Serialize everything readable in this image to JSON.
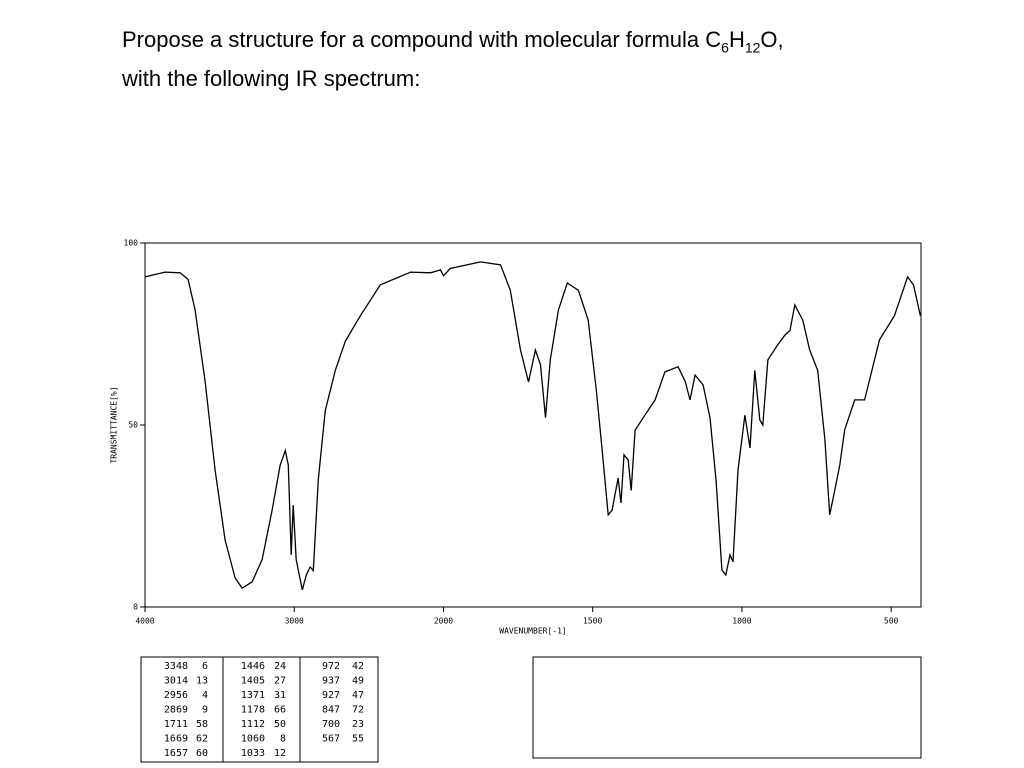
{
  "question": [
    "Propose a structure for a compound with molecular formula C",
    "6",
    "H",
    "12",
    "O,",
    "with the following IR spectrum:"
  ],
  "chart_data": {
    "type": "line",
    "xlabel": "WAVENUMBER[-1]",
    "ylabel": "TRANSMITTANCE[%]",
    "xlim": [
      4000,
      400
    ],
    "ylim": [
      0,
      100
    ],
    "x_scale_break": 2000,
    "x_scale_factor": 2,
    "xticks": [
      4000,
      3000,
      2000,
      1500,
      1000,
      500
    ],
    "yticks": [
      0,
      50,
      100
    ],
    "color": "#000000",
    "x": [
      4000,
      3866,
      3765,
      3711,
      3664,
      3597,
      3530,
      3463,
      3396,
      3349,
      3282,
      3215,
      3148,
      3094,
      3060,
      3040,
      3020,
      3007,
      2987,
      2946,
      2919,
      2893,
      2872,
      2839,
      2792,
      2725,
      2658,
      2557,
      2423,
      2221,
      2087,
      2020,
      2000,
      1977,
      1876,
      1809,
      1776,
      1742,
      1715,
      1692,
      1675,
      1658,
      1642,
      1615,
      1585,
      1548,
      1515,
      1488,
      1468,
      1448,
      1435,
      1415,
      1405,
      1395,
      1381,
      1371,
      1358,
      1325,
      1291,
      1258,
      1214,
      1190,
      1174,
      1157,
      1130,
      1107,
      1087,
      1067,
      1054,
      1040,
      1030,
      1013,
      990,
      973,
      957,
      940,
      930,
      913,
      880,
      856,
      839,
      823,
      796,
      773,
      746,
      722,
      706,
      689,
      672,
      656,
      622,
      589,
      539,
      489,
      445,
      425,
      402
    ],
    "values": [
      90.7,
      92,
      91.8,
      90,
      81.6,
      62,
      37.6,
      18.4,
      8,
      5.2,
      6.9,
      13,
      26.6,
      39,
      43,
      39,
      14.3,
      28,
      13,
      4.7,
      8.8,
      11,
      10,
      35,
      54,
      65,
      73,
      80,
      88.5,
      92,
      91.8,
      92.6,
      91,
      93,
      94.8,
      94,
      87,
      70.6,
      61.8,
      70.6,
      66.5,
      52,
      67.9,
      81.6,
      89,
      87,
      78.8,
      59.6,
      43,
      25.3,
      26.6,
      35.4,
      28.6,
      41.8,
      40.4,
      32,
      48.6,
      52.7,
      56.9,
      64.6,
      66,
      62,
      56.9,
      63.7,
      61,
      52,
      35,
      10.2,
      8.8,
      14.3,
      12.4,
      37.6,
      52.7,
      43.7,
      65,
      51.4,
      50,
      67.9,
      72,
      74.7,
      76,
      83,
      78.8,
      70.6,
      65,
      46,
      25.3,
      32,
      39,
      48.6,
      56.9,
      56.9,
      73.4,
      80,
      90.7,
      88.5,
      80
    ]
  },
  "peak_table": [
    [
      [
        3348,
        6
      ],
      [
        3014,
        13
      ],
      [
        2956,
        4
      ],
      [
        2869,
        9
      ],
      [
        1711,
        58
      ],
      [
        1669,
        62
      ],
      [
        1657,
        60
      ]
    ],
    [
      [
        1446,
        24
      ],
      [
        1405,
        27
      ],
      [
        1371,
        31
      ],
      [
        1178,
        66
      ],
      [
        1112,
        50
      ],
      [
        1060,
        8
      ],
      [
        1033,
        12
      ]
    ],
    [
      [
        972,
        42
      ],
      [
        937,
        49
      ],
      [
        927,
        47
      ],
      [
        847,
        72
      ],
      [
        700,
        23
      ],
      [
        567,
        55
      ]
    ]
  ]
}
